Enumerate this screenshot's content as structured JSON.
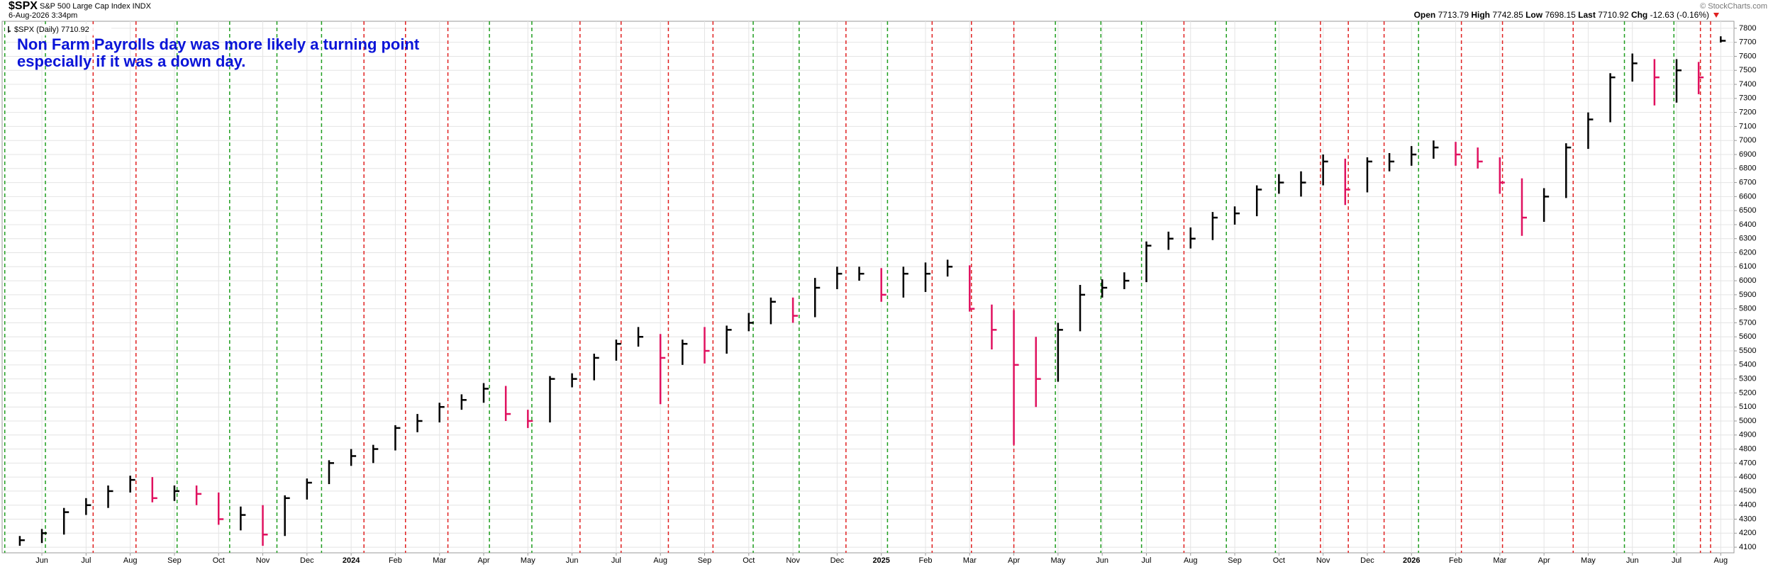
{
  "header": {
    "symbol": "$SPX",
    "name": "S&P 500 Large Cap Index INDX",
    "datetime": "6-Aug-2026 3:34pm",
    "credit": "© StockCharts.com",
    "quote": {
      "open_label": "Open",
      "open": 7713.79,
      "high_label": "High",
      "high": 7742.85,
      "low_label": "Low",
      "low": 7698.15,
      "last_label": "Last",
      "last": 7710.92,
      "chg_label": "Chg",
      "chg": -12.63,
      "chg_pct": {
        "value": -0.16,
        "label": "(-0.16%)"
      }
    }
  },
  "chart_data": {
    "type": "hlc",
    "annotations": [
      "Non Farm Payrolls day was more likely a turning point",
      "especially if it was a down day."
    ],
    "xlim": [
      -0.9,
      38.3
    ],
    "ylim": [
      4060,
      7850
    ],
    "grid": true,
    "log_scale": false,
    "xticks": [
      {
        "value": 0,
        "label": "Jun"
      },
      {
        "value": 1,
        "label": "Jul"
      },
      {
        "value": 2,
        "label": "Aug"
      },
      {
        "value": 3,
        "label": "Sep"
      },
      {
        "value": 4,
        "label": "Oct"
      },
      {
        "value": 5,
        "label": "Nov"
      },
      {
        "value": 6,
        "label": "Dec"
      },
      {
        "value": 7,
        "label": "2024"
      },
      {
        "value": 8,
        "label": "Feb"
      },
      {
        "value": 9,
        "label": "Mar"
      },
      {
        "value": 10,
        "label": "Apr"
      },
      {
        "value": 11,
        "label": "May"
      },
      {
        "value": 12,
        "label": "Jun"
      },
      {
        "value": 13,
        "label": "Jul"
      },
      {
        "value": 14,
        "label": "Aug"
      },
      {
        "value": 15,
        "label": "Sep"
      },
      {
        "value": 16,
        "label": "Oct"
      },
      {
        "value": 17,
        "label": "Nov"
      },
      {
        "value": 18,
        "label": "Dec"
      },
      {
        "value": 19,
        "label": "2025"
      },
      {
        "value": 20,
        "label": "Feb"
      },
      {
        "value": 21,
        "label": "Mar"
      },
      {
        "value": 22,
        "label": "Apr"
      },
      {
        "value": 23,
        "label": "May"
      },
      {
        "value": 24,
        "label": "Jun"
      },
      {
        "value": 25,
        "label": "Jul"
      },
      {
        "value": 26,
        "label": "Aug"
      },
      {
        "value": 27,
        "label": "Sep"
      },
      {
        "value": 28,
        "label": "Oct"
      },
      {
        "value": 29,
        "label": "Nov"
      },
      {
        "value": 30,
        "label": "Dec"
      },
      {
        "value": 31,
        "label": "2026"
      },
      {
        "value": 32,
        "label": "Feb"
      },
      {
        "value": 33,
        "label": "Mar"
      },
      {
        "value": 34,
        "label": "Apr"
      },
      {
        "value": 35,
        "label": "May"
      },
      {
        "value": 36,
        "label": "Jun"
      },
      {
        "value": 37,
        "label": "Jul"
      },
      {
        "value": 38,
        "label": "Aug"
      }
    ],
    "yticks": [
      4100,
      4200,
      4300,
      4400,
      4500,
      4600,
      4700,
      4800,
      4900,
      5000,
      5100,
      5200,
      5300,
      5400,
      5500,
      5600,
      5700,
      5800,
      5900,
      6000,
      6100,
      6200,
      6300,
      6400,
      6500,
      6600,
      6700,
      6800,
      6900,
      7000,
      7100,
      7200,
      7300,
      7400,
      7500,
      7600,
      7700,
      7800
    ],
    "nfp_lines": [
      {
        "x": -0.84,
        "color": "#1f9e1f"
      },
      {
        "x": 0.08,
        "color": "#1f9e1f"
      },
      {
        "x": 1.16,
        "color": "#e02020"
      },
      {
        "x": 2.13,
        "color": "#e02020"
      },
      {
        "x": 3.06,
        "color": "#1f9e1f"
      },
      {
        "x": 4.25,
        "color": "#1f9e1f"
      },
      {
        "x": 5.32,
        "color": "#1f9e1f"
      },
      {
        "x": 6.33,
        "color": "#1f9e1f"
      },
      {
        "x": 7.29,
        "color": "#e02020"
      },
      {
        "x": 8.23,
        "color": "#e02020"
      },
      {
        "x": 9.19,
        "color": "#e02020"
      },
      {
        "x": 10.13,
        "color": "#1f9e1f"
      },
      {
        "x": 11.09,
        "color": "#1f9e1f"
      },
      {
        "x": 12.18,
        "color": "#e02020"
      },
      {
        "x": 13.11,
        "color": "#e02020"
      },
      {
        "x": 14.18,
        "color": "#e02020"
      },
      {
        "x": 15.19,
        "color": "#e02020"
      },
      {
        "x": 16.1,
        "color": "#1f9e1f"
      },
      {
        "x": 17.14,
        "color": "#1f9e1f"
      },
      {
        "x": 18.2,
        "color": "#e02020"
      },
      {
        "x": 19.14,
        "color": "#1f9e1f"
      },
      {
        "x": 20.15,
        "color": "#e02020"
      },
      {
        "x": 21.04,
        "color": "#e02020"
      },
      {
        "x": 22.0,
        "color": "#e02020"
      },
      {
        "x": 22.94,
        "color": "#1f9e1f"
      },
      {
        "x": 23.97,
        "color": "#1f9e1f"
      },
      {
        "x": 24.89,
        "color": "#1f9e1f"
      },
      {
        "x": 25.85,
        "color": "#e02020"
      },
      {
        "x": 26.81,
        "color": "#1f9e1f"
      },
      {
        "x": 27.92,
        "color": "#1f9e1f"
      },
      {
        "x": 28.94,
        "color": "#e02020"
      },
      {
        "x": 29.57,
        "color": "#e02020"
      },
      {
        "x": 30.38,
        "color": "#e02020"
      },
      {
        "x": 31.16,
        "color": "#1f9e1f"
      },
      {
        "x": 32.13,
        "color": "#e02020"
      },
      {
        "x": 33.06,
        "color": "#e02020"
      },
      {
        "x": 34.66,
        "color": "#e02020"
      },
      {
        "x": 35.82,
        "color": "#1f9e1f"
      },
      {
        "x": 36.94,
        "color": "#1f9e1f"
      },
      {
        "x": 37.54,
        "color": "#e02020"
      },
      {
        "x": 37.77,
        "color": "#e02020"
      }
    ],
    "series": [
      {
        "name": "$SPX (Daily)",
        "up_color": "#000000",
        "down_color": "#e0115f",
        "x": [
          -0.5,
          0,
          0.5,
          1,
          1.5,
          2,
          2.5,
          3,
          3.5,
          4,
          4.5,
          5,
          5.5,
          6,
          6.5,
          7,
          7.5,
          8,
          8.5,
          9,
          9.5,
          10,
          10.5,
          11,
          11.5,
          12,
          12.5,
          13,
          13.5,
          14,
          14.5,
          15,
          15.5,
          16,
          16.5,
          17,
          17.5,
          18,
          18.5,
          19,
          19.5,
          20,
          20.5,
          21,
          21.5,
          22,
          22.5,
          23,
          23.5,
          24,
          24.5,
          25,
          25.5,
          26,
          26.5,
          27,
          27.5,
          28,
          28.5,
          29,
          29.5,
          30,
          30.5,
          31,
          31.5,
          32,
          32.5,
          33,
          33.5,
          34,
          34.5,
          35,
          35.5,
          36,
          36.5,
          37,
          37.5,
          38
        ],
        "high": [
          4180,
          4230,
          4380,
          4450,
          4540,
          4610,
          4600,
          4540,
          4540,
          4490,
          4390,
          4400,
          4470,
          4590,
          4720,
          4800,
          4830,
          4970,
          5050,
          5130,
          5190,
          5270,
          5250,
          5080,
          5320,
          5340,
          5480,
          5580,
          5670,
          5620,
          5580,
          5670,
          5680,
          5770,
          5880,
          5880,
          6020,
          6100,
          6100,
          6090,
          6100,
          6130,
          6150,
          6110,
          5830,
          5790,
          5600,
          5700,
          5970,
          6010,
          6060,
          6280,
          6350,
          6380,
          6490,
          6530,
          6680,
          6760,
          6780,
          6900,
          6870,
          6880,
          6910,
          6960,
          7000,
          6990,
          6950,
          6880,
          6730,
          6660,
          6980,
          7200,
          7480,
          7620,
          7580,
          7580,
          7560,
          7742.85
        ],
        "low": [
          4110,
          4130,
          4190,
          4330,
          4380,
          4490,
          4420,
          4430,
          4400,
          4260,
          4220,
          4110,
          4180,
          4440,
          4550,
          4680,
          4700,
          4790,
          4920,
          4990,
          5080,
          5130,
          5000,
          4950,
          4990,
          5240,
          5290,
          5430,
          5530,
          5120,
          5400,
          5410,
          5480,
          5640,
          5690,
          5700,
          5740,
          5940,
          6000,
          5850,
          5880,
          5920,
          6030,
          5780,
          5510,
          4830,
          5100,
          5280,
          5640,
          5880,
          5940,
          5990,
          6220,
          6230,
          6290,
          6400,
          6460,
          6620,
          6600,
          6680,
          6540,
          6630,
          6780,
          6820,
          6870,
          6820,
          6800,
          6620,
          6320,
          6420,
          6590,
          6940,
          7130,
          7420,
          7250,
          7270,
          7330,
          7698.15
        ],
        "close": [
          4150,
          4200,
          4350,
          4400,
          4500,
          4580,
          4450,
          4500,
          4480,
          4300,
          4330,
          4190,
          4450,
          4560,
          4700,
          4750,
          4800,
          4950,
          5000,
          5100,
          5150,
          5230,
          5050,
          5000,
          5300,
          5300,
          5450,
          5550,
          5600,
          5450,
          5550,
          5500,
          5650,
          5700,
          5850,
          5750,
          5950,
          6050,
          6050,
          5900,
          6050,
          6050,
          6100,
          5800,
          5650,
          5400,
          5300,
          5650,
          5900,
          5950,
          6000,
          6250,
          6300,
          6300,
          6450,
          6480,
          6650,
          6700,
          6700,
          6850,
          6650,
          6850,
          6850,
          6900,
          6950,
          6900,
          6850,
          6700,
          6450,
          6600,
          6950,
          7150,
          7450,
          7550,
          7450,
          7500,
          7450,
          7710.92
        ]
      }
    ]
  }
}
